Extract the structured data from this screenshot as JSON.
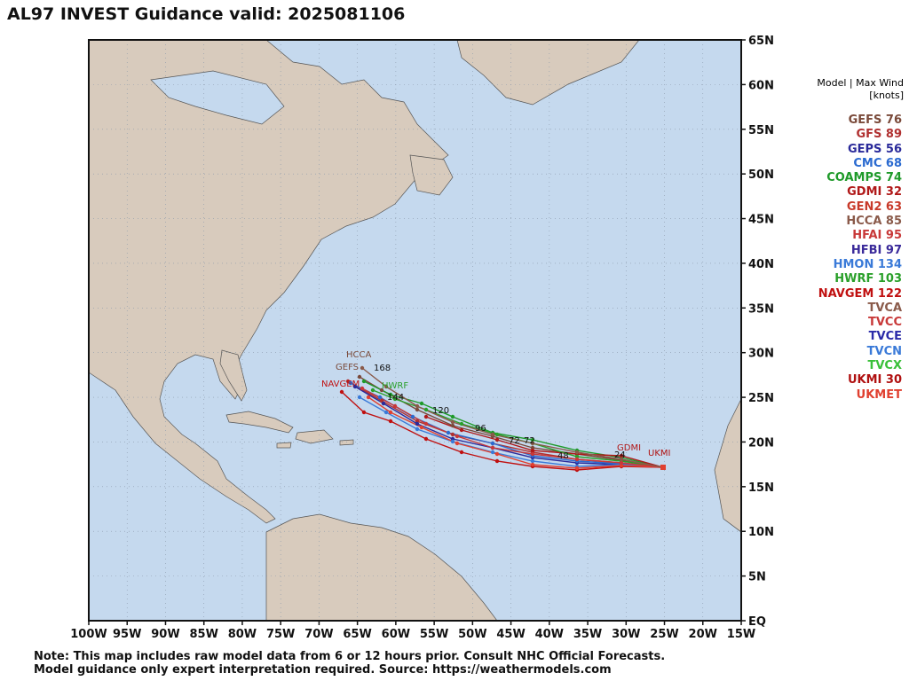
{
  "title": "AL97 INVEST Guidance valid: 2025081106",
  "legend": {
    "header_line1": "Model | Max Wind",
    "header_line2": "[knots]",
    "models": [
      {
        "name": "GEFS",
        "wind": "76",
        "color": "#7a4a3a"
      },
      {
        "name": "GFS",
        "wind": "89",
        "color": "#b03030"
      },
      {
        "name": "GEPS",
        "wind": "56",
        "color": "#2a2a9a"
      },
      {
        "name": "CMC",
        "wind": "68",
        "color": "#2a6ad0"
      },
      {
        "name": "COAMPS",
        "wind": "74",
        "color": "#1f9a2a"
      },
      {
        "name": "GDMI",
        "wind": "32",
        "color": "#b01818"
      },
      {
        "name": "GEN2",
        "wind": "63",
        "color": "#c83a2a"
      },
      {
        "name": "HCCA",
        "wind": "85",
        "color": "#8a5a4a"
      },
      {
        "name": "HFAI",
        "wind": "95",
        "color": "#c83838"
      },
      {
        "name": "HFBI",
        "wind": "97",
        "color": "#3a2a9a"
      },
      {
        "name": "HMON",
        "wind": "134",
        "color": "#3a7ad8"
      },
      {
        "name": "HWRF",
        "wind": "103",
        "color": "#2aa02a"
      },
      {
        "name": "NAVGEM",
        "wind": "122",
        "color": "#c01010"
      },
      {
        "name": "TVCA",
        "wind": "",
        "color": "#8a5a4a"
      },
      {
        "name": "TVCC",
        "wind": "",
        "color": "#c83838"
      },
      {
        "name": "TVCE",
        "wind": "",
        "color": "#2a2aa8"
      },
      {
        "name": "TVCN",
        "wind": "",
        "color": "#3a7ad8"
      },
      {
        "name": "TVCX",
        "wind": "",
        "color": "#3ac03a"
      },
      {
        "name": "UKMI",
        "wind": "30",
        "color": "#b01010"
      },
      {
        "name": "UKMET",
        "wind": "",
        "color": "#e04030"
      }
    ]
  },
  "axes": {
    "lon_labels": [
      "100W",
      "95W",
      "90W",
      "85W",
      "80W",
      "75W",
      "70W",
      "65W",
      "60W",
      "55W",
      "50W",
      "45W",
      "40W",
      "35W",
      "30W",
      "25W",
      "20W",
      "15W"
    ],
    "lat_labels": [
      "EQ",
      "5N",
      "10N",
      "15N",
      "20N",
      "25N",
      "30N",
      "35N",
      "40N",
      "45N",
      "50N",
      "55N",
      "60N",
      "65N"
    ],
    "lon_range": [
      -100,
      -15
    ],
    "lat_range": [
      0,
      65
    ]
  },
  "map_labels": {
    "hcca": "HCCA",
    "gefs": "GEFS",
    "hwrf": "HWRF",
    "navgem": "NAVGEM",
    "gdmi": "GDMI",
    "ukmi": "UKMI",
    "tv168": "168",
    "tv120": "120",
    "tv96": "96",
    "tv72a": "72",
    "tv72b": "72",
    "tv48": "48",
    "tv24": "24",
    "tv144": "144"
  },
  "colors": {
    "ocean": "#c5d9ee",
    "land": "#d8cbbd",
    "border": "#444444"
  },
  "note": {
    "line1": "Note: This map includes raw model data from 6 or 12 hours prior. Consult NHC Official Forecasts.",
    "line2": "Model guidance only expert interpretation required. Source: https://weathermodels.com"
  }
}
